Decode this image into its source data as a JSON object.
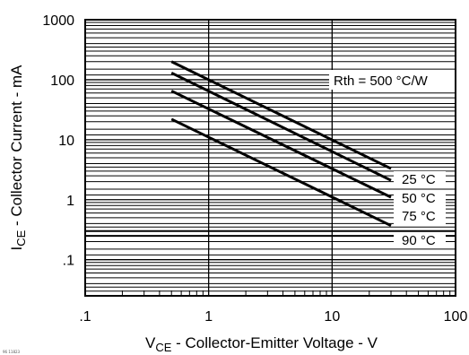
{
  "chart_data": {
    "type": "line",
    "x_scale": "log",
    "y_scale": "log",
    "xlim": [
      0.1,
      100
    ],
    "ylim": [
      0.025,
      1000
    ],
    "x_ticks": [
      {
        "value": 0.1,
        "label": ".1"
      },
      {
        "value": 1,
        "label": "1"
      },
      {
        "value": 10,
        "label": "10"
      },
      {
        "value": 100,
        "label": "100"
      }
    ],
    "y_ticks": [
      {
        "value": 1000,
        "label": "1000"
      },
      {
        "value": 100,
        "label": "100"
      },
      {
        "value": 10,
        "label": "10"
      },
      {
        "value": 1,
        "label": "1"
      },
      {
        "value": 0.1,
        "label": ".1"
      }
    ],
    "xlabel": {
      "main": "V",
      "sub": "CE",
      "rest": " - Collector-Emitter Voltage - V"
    },
    "ylabel": {
      "main": "I",
      "sub": "CE",
      "rest": " - Collector Current - mA"
    },
    "grid": true,
    "series": [
      {
        "name": "25 °C",
        "x": [
          0.5,
          30
        ],
        "y": [
          200,
          3.3
        ]
      },
      {
        "name": "50 °C",
        "x": [
          0.5,
          30
        ],
        "y": [
          130,
          2.1
        ]
      },
      {
        "name": "75 °C",
        "x": [
          0.5,
          30
        ],
        "y": [
          65,
          1.1
        ]
      },
      {
        "name": "90 °C",
        "x": [
          0.5,
          30
        ],
        "y": [
          22,
          0.37
        ]
      }
    ],
    "annotations": [
      {
        "text": "Rth = 500 °C/W"
      }
    ]
  },
  "footer_code": "96 11823"
}
